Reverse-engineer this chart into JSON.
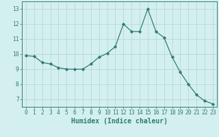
{
  "x": [
    0,
    1,
    2,
    3,
    4,
    5,
    6,
    7,
    8,
    9,
    10,
    11,
    12,
    13,
    14,
    15,
    16,
    17,
    18,
    19,
    20,
    21,
    22,
    23
  ],
  "y": [
    9.9,
    9.85,
    9.45,
    9.35,
    9.1,
    9.0,
    9.0,
    9.0,
    9.35,
    9.8,
    10.05,
    10.5,
    12.0,
    11.5,
    11.5,
    13.0,
    11.5,
    11.1,
    9.8,
    8.8,
    8.0,
    7.3,
    6.9,
    6.7
  ],
  "line_color": "#2e7d6e",
  "marker": "D",
  "marker_size": 2.2,
  "bg_color": "#d4efef",
  "grid_color": "#b8d8d8",
  "xlabel": "Humidex (Indice chaleur)",
  "ylim": [
    6.5,
    13.5
  ],
  "xlim": [
    -0.5,
    23.5
  ],
  "yticks": [
    7,
    8,
    9,
    10,
    11,
    12,
    13
  ],
  "xticks": [
    0,
    1,
    2,
    3,
    4,
    5,
    6,
    7,
    8,
    9,
    10,
    11,
    12,
    13,
    14,
    15,
    16,
    17,
    18,
    19,
    20,
    21,
    22,
    23
  ],
  "tick_fontsize": 5.8,
  "xlabel_fontsize": 7.0
}
